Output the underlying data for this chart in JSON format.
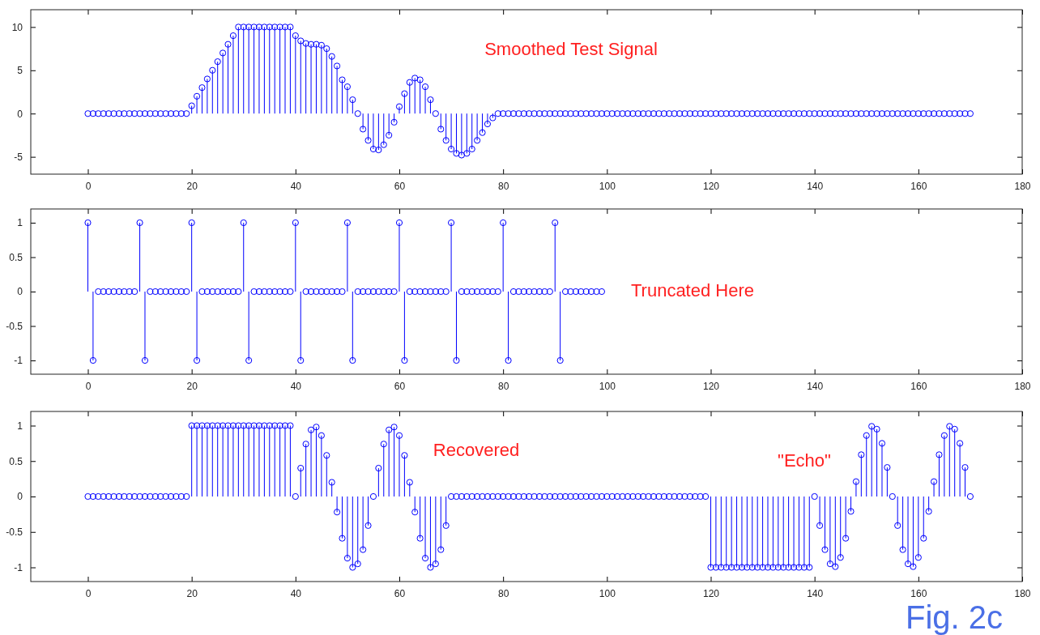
{
  "chart_data": [
    {
      "type": "lollipop",
      "marker": "circle",
      "grid": false,
      "xlim": [
        -11,
        180
      ],
      "xticks": [
        0,
        20,
        40,
        60,
        80,
        100,
        120,
        140,
        160,
        180
      ],
      "ylim": [
        -7,
        12
      ],
      "yticks": [
        -5,
        0,
        5,
        10
      ],
      "annotations": [
        "Smoothed Test Signal"
      ],
      "series": [
        {
          "color": "#0000ff",
          "x": [
            0,
            1,
            2,
            3,
            4,
            5,
            6,
            7,
            8,
            9,
            10,
            11,
            12,
            13,
            14,
            15,
            16,
            17,
            18,
            19,
            20,
            21,
            22,
            23,
            24,
            25,
            26,
            27,
            28,
            29,
            30,
            31,
            32,
            33,
            34,
            35,
            36,
            37,
            38,
            39,
            40,
            41,
            42,
            43,
            44,
            45,
            46,
            47,
            48,
            49,
            50,
            51,
            52,
            53,
            54,
            55,
            56,
            57,
            58,
            59,
            60,
            61,
            62,
            63,
            64,
            65,
            66,
            67,
            68,
            69,
            70,
            71,
            72,
            73,
            74,
            75,
            76,
            77,
            78,
            79,
            80,
            81,
            82,
            83,
            84,
            85,
            86,
            87,
            88,
            89,
            90,
            91,
            92,
            93,
            94,
            95,
            96,
            97,
            98,
            99,
            100,
            101,
            102,
            103,
            104,
            105,
            106,
            107,
            108,
            109,
            110,
            111,
            112,
            113,
            114,
            115,
            116,
            117,
            118,
            119,
            120,
            121,
            122,
            123,
            124,
            125,
            126,
            127,
            128,
            129,
            130,
            131,
            132,
            133,
            134,
            135,
            136,
            137,
            138,
            139,
            140,
            141,
            142,
            143,
            144,
            145,
            146,
            147,
            148,
            149,
            150,
            151,
            152,
            153,
            154,
            155,
            156,
            157,
            158,
            159,
            160,
            161,
            162,
            163,
            164,
            165,
            166,
            167,
            168,
            169,
            170
          ],
          "values": [
            0,
            0,
            0,
            0,
            0,
            0,
            0,
            0,
            0,
            0,
            0,
            0,
            0,
            0,
            0,
            0,
            0,
            0,
            0,
            0,
            0.9,
            2,
            3,
            4,
            5,
            6,
            7,
            8,
            9,
            10,
            10,
            10,
            10,
            10,
            10,
            10,
            10,
            10,
            10,
            10,
            9,
            8.4,
            8.1,
            8,
            8,
            7.9,
            7.5,
            6.6,
            5.5,
            3.9,
            3.1,
            1.6,
            0,
            -1.8,
            -3.1,
            -4.1,
            -4.2,
            -3.6,
            -2.5,
            -1,
            0.8,
            2.3,
            3.6,
            4.1,
            3.9,
            3.1,
            1.6,
            0,
            -1.8,
            -3.1,
            -4.1,
            -4.6,
            -4.8,
            -4.6,
            -4.1,
            -3.1,
            -2.2,
            -1.2,
            -0.5,
            0,
            0,
            0,
            0,
            0,
            0,
            0,
            0,
            0,
            0,
            0,
            0,
            0,
            0,
            0,
            0,
            0,
            0,
            0,
            0,
            0,
            0,
            0,
            0,
            0,
            0,
            0,
            0,
            0,
            0,
            0,
            0,
            0,
            0,
            0,
            0,
            0,
            0,
            0,
            0,
            0,
            0,
            0,
            0,
            0,
            0,
            0,
            0,
            0,
            0,
            0,
            0,
            0,
            0,
            0,
            0,
            0,
            0,
            0,
            0,
            0,
            0,
            0,
            0,
            0,
            0,
            0,
            0,
            0,
            0,
            0,
            0,
            0,
            0,
            0,
            0,
            0,
            0,
            0,
            0,
            0,
            0,
            0,
            0,
            0,
            0,
            0,
            0,
            0,
            0,
            0,
            0
          ]
        }
      ]
    },
    {
      "type": "lollipop",
      "marker": "circle",
      "grid": false,
      "xlim": [
        -11,
        180
      ],
      "xticks": [
        0,
        20,
        40,
        60,
        80,
        100,
        120,
        140,
        160,
        180
      ],
      "ylim": [
        -1.2,
        1.2
      ],
      "yticks": [
        -1,
        -0.5,
        0,
        0.5,
        1
      ],
      "annotations": [
        "Truncated Here"
      ],
      "series": [
        {
          "color": "#0000ff",
          "x": [
            0,
            1,
            2,
            3,
            4,
            5,
            6,
            7,
            8,
            9,
            10,
            11,
            12,
            13,
            14,
            15,
            16,
            17,
            18,
            19,
            20,
            21,
            22,
            23,
            24,
            25,
            26,
            27,
            28,
            29,
            30,
            31,
            32,
            33,
            34,
            35,
            36,
            37,
            38,
            39,
            40,
            41,
            42,
            43,
            44,
            45,
            46,
            47,
            48,
            49,
            50,
            51,
            52,
            53,
            54,
            55,
            56,
            57,
            58,
            59,
            60,
            61,
            62,
            63,
            64,
            65,
            66,
            67,
            68,
            69,
            70,
            71,
            72,
            73,
            74,
            75,
            76,
            77,
            78,
            79,
            80,
            81,
            82,
            83,
            84,
            85,
            86,
            87,
            88,
            89,
            90,
            91,
            92,
            93,
            94,
            95,
            96,
            97,
            98,
            99
          ],
          "values": [
            1,
            -1,
            0,
            0,
            0,
            0,
            0,
            0,
            0,
            0,
            1,
            -1,
            0,
            0,
            0,
            0,
            0,
            0,
            0,
            0,
            1,
            -1,
            0,
            0,
            0,
            0,
            0,
            0,
            0,
            0,
            1,
            -1,
            0,
            0,
            0,
            0,
            0,
            0,
            0,
            0,
            1,
            -1,
            0,
            0,
            0,
            0,
            0,
            0,
            0,
            0,
            1,
            -1,
            0,
            0,
            0,
            0,
            0,
            0,
            0,
            0,
            1,
            -1,
            0,
            0,
            0,
            0,
            0,
            0,
            0,
            0,
            1,
            -1,
            0,
            0,
            0,
            0,
            0,
            0,
            0,
            0,
            1,
            -1,
            0,
            0,
            0,
            0,
            0,
            0,
            0,
            0,
            1,
            -1,
            0,
            0,
            0,
            0,
            0,
            0,
            0,
            0
          ]
        }
      ]
    },
    {
      "type": "lollipop",
      "marker": "circle",
      "grid": false,
      "xlim": [
        -11,
        180
      ],
      "xticks": [
        0,
        20,
        40,
        60,
        80,
        100,
        120,
        140,
        160,
        180
      ],
      "ylim": [
        -1.2,
        1.2
      ],
      "yticks": [
        -1,
        -0.5,
        0,
        0.5,
        1
      ],
      "annotations": [
        "Recovered",
        "\"Echo\"",
        "Fig. 2c"
      ],
      "series": [
        {
          "color": "#0000ff",
          "x": [
            0,
            1,
            2,
            3,
            4,
            5,
            6,
            7,
            8,
            9,
            10,
            11,
            12,
            13,
            14,
            15,
            16,
            17,
            18,
            19,
            20,
            21,
            22,
            23,
            24,
            25,
            26,
            27,
            28,
            29,
            30,
            31,
            32,
            33,
            34,
            35,
            36,
            37,
            38,
            39,
            40,
            41,
            42,
            43,
            44,
            45,
            46,
            47,
            48,
            49,
            50,
            51,
            52,
            53,
            54,
            55,
            56,
            57,
            58,
            59,
            60,
            61,
            62,
            63,
            64,
            65,
            66,
            67,
            68,
            69,
            70,
            71,
            72,
            73,
            74,
            75,
            76,
            77,
            78,
            79,
            80,
            81,
            82,
            83,
            84,
            85,
            86,
            87,
            88,
            89,
            90,
            91,
            92,
            93,
            94,
            95,
            96,
            97,
            98,
            99,
            100,
            101,
            102,
            103,
            104,
            105,
            106,
            107,
            108,
            109,
            110,
            111,
            112,
            113,
            114,
            115,
            116,
            117,
            118,
            119,
            120,
            121,
            122,
            123,
            124,
            125,
            126,
            127,
            128,
            129,
            130,
            131,
            132,
            133,
            134,
            135,
            136,
            137,
            138,
            139,
            140,
            141,
            142,
            143,
            144,
            145,
            146,
            147,
            148,
            149,
            150,
            151,
            152,
            153,
            154,
            155,
            156,
            157,
            158,
            159,
            160,
            161,
            162,
            163,
            164,
            165,
            166,
            167,
            168,
            169,
            170
          ],
          "values": [
            0,
            0,
            0,
            0,
            0,
            0,
            0,
            0,
            0,
            0,
            0,
            0,
            0,
            0,
            0,
            0,
            0,
            0,
            0,
            0,
            1,
            1,
            1,
            1,
            1,
            1,
            1,
            1,
            1,
            1,
            1,
            1,
            1,
            1,
            1,
            1,
            1,
            1,
            1,
            1,
            0,
            0.4,
            0.74,
            0.94,
            0.98,
            0.86,
            0.58,
            0.2,
            -0.22,
            -0.59,
            -0.87,
            -1,
            -0.95,
            -0.75,
            -0.41,
            0,
            0.4,
            0.74,
            0.94,
            0.98,
            0.86,
            0.58,
            0.2,
            -0.22,
            -0.59,
            -0.87,
            -1,
            -0.95,
            -0.75,
            -0.41,
            0,
            0,
            0,
            0,
            0,
            0,
            0,
            0,
            0,
            0,
            0,
            0,
            0,
            0,
            0,
            0,
            0,
            0,
            0,
            0,
            0,
            0,
            0,
            0,
            0,
            0,
            0,
            0,
            0,
            0,
            0,
            0,
            0,
            0,
            0,
            0,
            0,
            0,
            0,
            0,
            0,
            0,
            0,
            0,
            0,
            0,
            0,
            0,
            0,
            0,
            -1,
            -1,
            -1,
            -1,
            -1,
            -1,
            -1,
            -1,
            -1,
            -1,
            -1,
            -1,
            -1,
            -1,
            -1,
            -1,
            -1,
            -1,
            -1,
            -1,
            0,
            -0.41,
            -0.75,
            -0.95,
            -0.99,
            -0.86,
            -0.59,
            -0.21,
            0.21,
            0.59,
            0.86,
            0.99,
            0.95,
            0.75,
            0.41,
            0,
            -0.41,
            -0.75,
            -0.95,
            -0.99,
            -0.86,
            -0.59,
            -0.21,
            0.21,
            0.59,
            0.86,
            0.99,
            0.95,
            0.75,
            0.41,
            0
          ]
        }
      ]
    }
  ]
}
